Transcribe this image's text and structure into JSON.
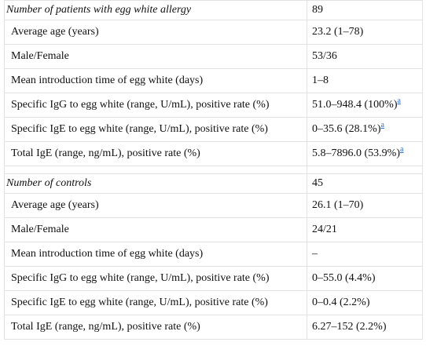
{
  "patients": {
    "header": {
      "label": "Number of patients with egg white allergy",
      "value": "89"
    },
    "rows": [
      {
        "label": "Average age (years)",
        "value": "23.2 (1–78)",
        "note": ""
      },
      {
        "label": "Male/Female",
        "value": "53/36",
        "note": ""
      },
      {
        "label": "Mean introduction time of egg white (days)",
        "value": "1–8",
        "note": ""
      },
      {
        "label": "Specific IgG to egg white (range, U/mL), positive rate (%)",
        "value": "51.0–948.4 (100%)",
        "note": "a"
      },
      {
        "label": "Specific IgE to egg white (range, U/mL), positive rate (%)",
        "value": "0–35.6 (28.1%)",
        "note": "a"
      },
      {
        "label": "Total IgE (range, ng/mL), positive rate (%)",
        "value": "5.8–7896.0 (53.9%)",
        "note": "a"
      }
    ]
  },
  "controls": {
    "header": {
      "label": "Number of controls",
      "value": "45"
    },
    "rows": [
      {
        "label": "Average age (years)",
        "value": "26.1 (1–70)",
        "note": ""
      },
      {
        "label": "Male/Female",
        "value": "24/21",
        "note": ""
      },
      {
        "label": "Mean introduction time of egg white (days)",
        "value": "–",
        "note": ""
      },
      {
        "label": "Specific IgG to egg white (range, U/mL), positive rate (%)",
        "value": "0–55.0 (4.4%)",
        "note": ""
      },
      {
        "label": "Specific IgE to egg white (range, U/mL), positive rate (%)",
        "value": "0–0.4 (2.2%)",
        "note": ""
      },
      {
        "label": "Total IgE (range, ng/mL), positive rate (%)",
        "value": "6.27–152 (2.2%)",
        "note": ""
      }
    ]
  }
}
